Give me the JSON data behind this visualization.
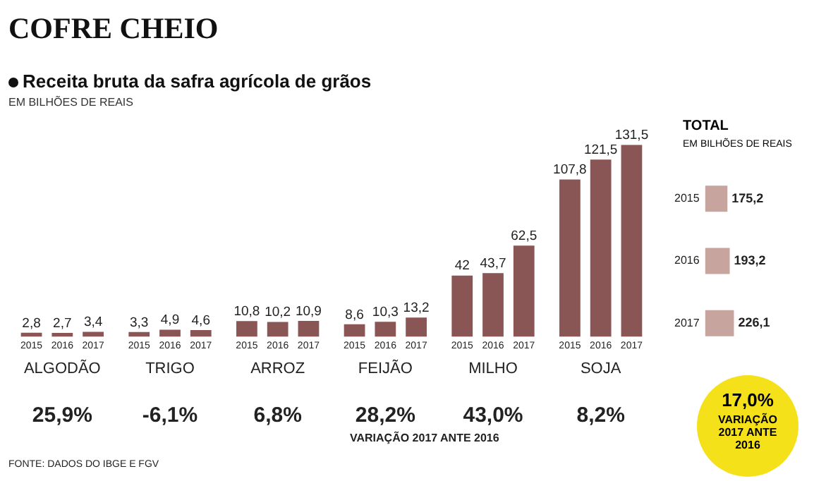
{
  "chart_data": [
    {
      "type": "bar",
      "title": "COFRE CHEIO",
      "subtitle": "Receita bruta da safra agrícola de grãos",
      "ylabel": "EM BILHÕES DE REAIS",
      "categories": [
        "ALGODÃO",
        "TRIGO",
        "ARROZ",
        "FEIJÃO",
        "MILHO",
        "SOJA"
      ],
      "series": [
        {
          "name": "2015",
          "color": "#8a5555",
          "values": [
            2.8,
            3.3,
            10.8,
            8.6,
            42,
            107.8
          ],
          "value_labels": [
            "2,8",
            "3,3",
            "10,8",
            "8,6",
            "42",
            "107,8"
          ]
        },
        {
          "name": "2016",
          "color": "#8a5555",
          "values": [
            2.7,
            4.9,
            10.2,
            10.3,
            43.7,
            121.5
          ],
          "value_labels": [
            "2,7",
            "4,9",
            "10,2",
            "10,3",
            "43,7",
            "121,5"
          ]
        },
        {
          "name": "2017",
          "color": "#8a5555",
          "values": [
            3.4,
            4.6,
            10.9,
            13.2,
            62.5,
            131.5
          ],
          "value_labels": [
            "3,4",
            "4,6",
            "10,9",
            "13,2",
            "62,5",
            "131,5"
          ]
        }
      ],
      "annotations": [
        "25,9%",
        "-6,1%",
        "6,8%",
        "28,2%",
        "43,0%",
        "8,2%",
        "VARIAÇÃO 2017 ANTE 2016",
        "FONTE: DADOS DO IBGE E FGV"
      ],
      "legend": false,
      "grid": false,
      "tick_labels": "x"
    },
    {
      "type": "bar",
      "orientation": "horizontal",
      "title": "TOTAL",
      "subtitle": "EM BILHÕES DE REAIS",
      "categories": [
        "2015",
        "2016",
        "2017"
      ],
      "values": [
        175.2,
        193.2,
        226.1
      ],
      "color": "#c8a49e",
      "value_labels": [
        "175,2",
        "193,2",
        "226,1"
      ],
      "annotations": [
        "17,0%",
        "VARIAÇÃO 2017 ANTE 2016"
      ],
      "legend": false,
      "grid": false,
      "tick_labels": "y"
    }
  ]
}
